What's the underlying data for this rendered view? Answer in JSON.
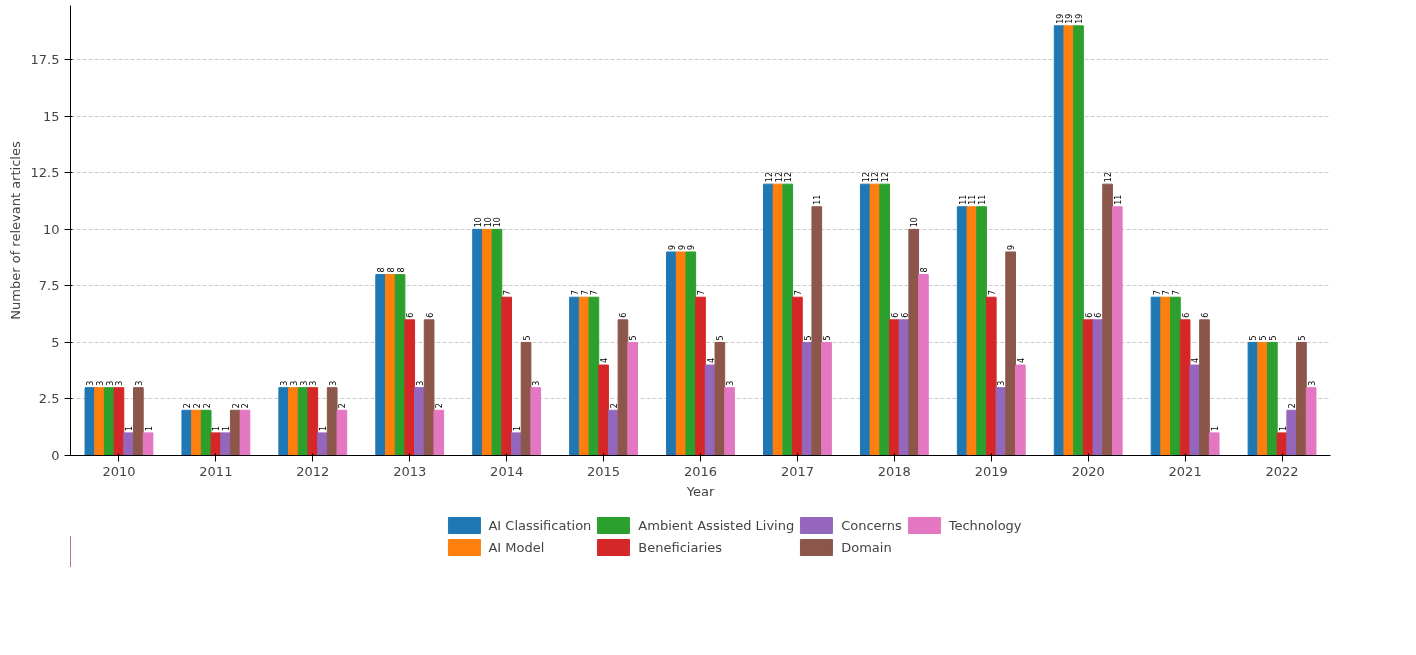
{
  "chart_data": {
    "type": "bar",
    "xlabel": "Year",
    "ylabel": "Number of relevant articles",
    "categories": [
      "2010",
      "2011",
      "2012",
      "2013",
      "2014",
      "2015",
      "2016",
      "2017",
      "2018",
      "2019",
      "2020",
      "2021",
      "2022"
    ],
    "series": [
      {
        "name": "AI Classification",
        "color": "#1f77b4",
        "values": [
          3,
          2,
          3,
          8,
          10,
          7,
          9,
          12,
          12,
          11,
          19,
          7,
          5
        ]
      },
      {
        "name": "AI Model",
        "color": "#ff7f0e",
        "values": [
          3,
          2,
          3,
          8,
          10,
          7,
          9,
          12,
          12,
          11,
          19,
          7,
          5
        ]
      },
      {
        "name": "Ambient Assisted Living",
        "color": "#2ca02c",
        "values": [
          3,
          2,
          3,
          8,
          10,
          7,
          9,
          12,
          12,
          11,
          19,
          7,
          5
        ]
      },
      {
        "name": "Beneficiaries",
        "color": "#d62728",
        "values": [
          3,
          1,
          3,
          6,
          7,
          4,
          7,
          7,
          6,
          7,
          6,
          6,
          1
        ]
      },
      {
        "name": "Concerns",
        "color": "#9467bd",
        "values": [
          1,
          1,
          1,
          3,
          1,
          2,
          4,
          5,
          6,
          3,
          6,
          4,
          2
        ]
      },
      {
        "name": "Domain",
        "color": "#8c564b",
        "values": [
          3,
          2,
          3,
          6,
          5,
          6,
          5,
          11,
          10,
          9,
          12,
          6,
          5
        ]
      },
      {
        "name": "Technology",
        "color": "#e377c2",
        "values": [
          1,
          2,
          2,
          2,
          3,
          5,
          3,
          5,
          8,
          4,
          11,
          1,
          3
        ]
      }
    ],
    "ylim": [
      0,
      19.9
    ],
    "yticks": [
      0,
      2.5,
      5,
      7.5,
      10,
      12.5,
      15,
      17.5
    ],
    "grid": "y",
    "legend": "bottom",
    "data_labels": true
  }
}
